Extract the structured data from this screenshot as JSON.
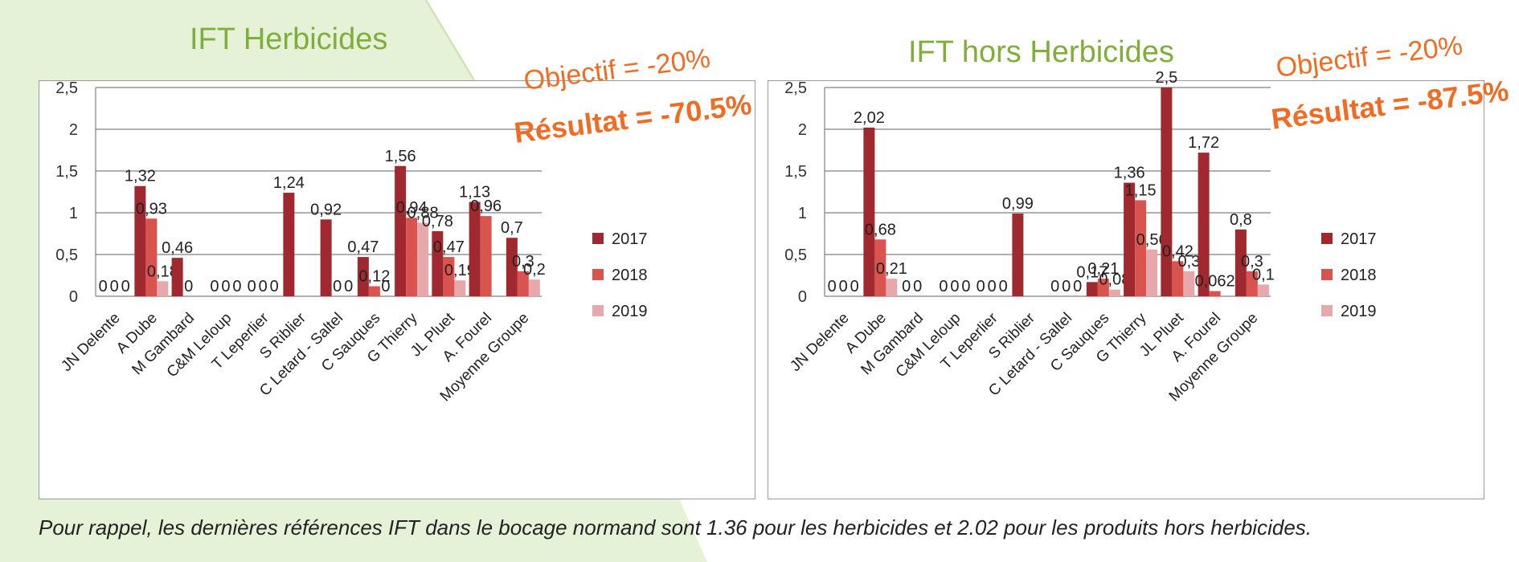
{
  "annotations": {
    "left": {
      "objective": "Objectif = -20%",
      "result": "Résultat = -70.5%"
    },
    "right": {
      "objective": "Objectif = -20%",
      "result": "Résultat = -87.5%"
    }
  },
  "footnote": "Pour rappel, les dernières références IFT dans le bocage normand sont 1.36 pour les herbicides et 2.02 pour les produits hors herbicides.",
  "colors": {
    "s2017": "#a0292f",
    "s2018": "#d9534f",
    "s2019": "#e6a8aa",
    "title_green": "#7fae3a",
    "annotation_orange": "#f26b22",
    "background_green": "#e6f2d8"
  },
  "chart_data": [
    {
      "type": "bar",
      "title": "IFT Herbicides",
      "categories": [
        "JN Delente",
        "A Dube",
        "M Gambard",
        "C&M Leloup",
        "T Leperlier",
        "S Riblier",
        "C Letard - Saltel",
        "C Sauques",
        "G Thierry",
        "JL Pluet",
        "A. Fourel",
        "Moyenne Groupe"
      ],
      "series": [
        {
          "name": "2017",
          "values": [
            0,
            1.32,
            0.46,
            0,
            0,
            1.24,
            0.92,
            0.47,
            1.56,
            0.78,
            1.13,
            0.7
          ],
          "labels": [
            "0",
            "1,32",
            "0,46",
            "0",
            "0",
            "1,24",
            "0,92",
            "0,47",
            "1,56",
            "0,78",
            "1,13",
            "0,7"
          ]
        },
        {
          "name": "2018",
          "values": [
            0,
            0.93,
            0,
            0,
            0,
            null,
            0,
            0.12,
            0.94,
            0.47,
            0.96,
            0.3
          ],
          "labels": [
            "0",
            "0,93",
            "0",
            "0",
            "0",
            "",
            "0",
            "0,12",
            "0,94",
            "0,47",
            "0,96",
            "0,3"
          ]
        },
        {
          "name": "2019",
          "values": [
            0,
            0.18,
            null,
            0,
            0,
            null,
            0,
            0,
            0.88,
            0.19,
            null,
            0.2
          ],
          "labels": [
            "0",
            "0,18",
            "",
            "0",
            "0",
            "",
            "0",
            "0",
            "0,88",
            "0,19",
            "",
            "0,2"
          ]
        }
      ],
      "y_ticks": [
        "0",
        "0,5",
        "1",
        "1,5",
        "2",
        "2,5"
      ],
      "ylim": [
        0,
        2.5
      ],
      "grid": true,
      "legend_position": "right"
    },
    {
      "type": "bar",
      "title": "IFT hors Herbicides",
      "categories": [
        "JN Delente",
        "A Dube",
        "M Gambard",
        "C&M Leloup",
        "T Leperlier",
        "S Riblier",
        "C Letard - Saltel",
        "C Sauques",
        "G Thierry",
        "JL Pluet",
        "A. Fourel",
        "Moyenne Groupe"
      ],
      "series": [
        {
          "name": "2017",
          "values": [
            0,
            2.02,
            0,
            0,
            0,
            0.99,
            0,
            0.17,
            1.36,
            2.5,
            1.72,
            0.8
          ],
          "labels": [
            "0",
            "2,02",
            "0",
            "0",
            "0",
            "0,99",
            "0",
            "0,17",
            "1,36",
            "2,5",
            "1,72",
            "0,8"
          ]
        },
        {
          "name": "2018",
          "values": [
            0,
            0.68,
            0,
            0,
            0,
            null,
            0,
            0.21,
            1.15,
            0.42,
            0.062,
            0.3
          ],
          "labels": [
            "0",
            "0,68",
            "0",
            "0",
            "0",
            "",
            "0",
            "0,21",
            "1,15",
            "0,42",
            "0,062",
            "0,3"
          ]
        },
        {
          "name": "2019",
          "values": [
            0,
            0.21,
            null,
            0,
            0,
            null,
            0,
            0.08,
            0.56,
            0.3,
            null,
            0.14
          ],
          "labels": [
            "0",
            "0,21",
            "",
            "0",
            "0",
            "",
            "0",
            "0,08",
            "0,56",
            "0,3",
            "",
            "0,1"
          ]
        }
      ],
      "y_ticks": [
        "0",
        "0,5",
        "1",
        "1,5",
        "2",
        "2,5"
      ],
      "ylim": [
        0,
        2.5
      ],
      "grid": true,
      "legend_position": "right"
    }
  ]
}
